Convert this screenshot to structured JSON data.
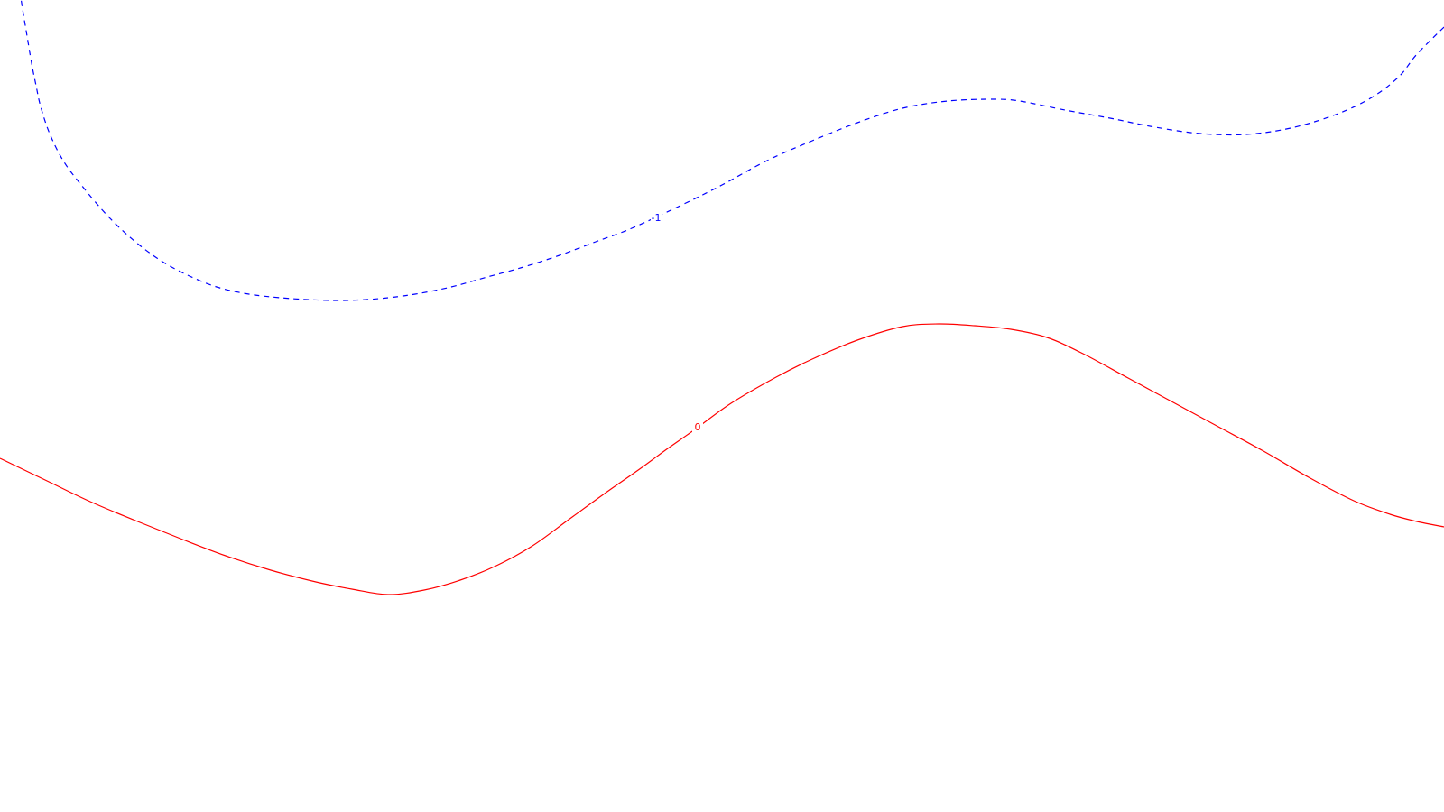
{
  "chart_data": {
    "type": "line",
    "series": [
      {
        "label": "-1",
        "color": "#0000ff",
        "dash": true,
        "points": [
          [
            22,
            -10
          ],
          [
            25,
            10
          ],
          [
            30,
            40
          ],
          [
            35,
            70
          ],
          [
            40,
            95
          ],
          [
            45,
            118
          ],
          [
            55,
            148
          ],
          [
            70,
            178
          ],
          [
            90,
            205
          ],
          [
            120,
            240
          ],
          [
            150,
            268
          ],
          [
            180,
            290
          ],
          [
            210,
            306
          ],
          [
            240,
            318
          ],
          [
            270,
            325
          ],
          [
            300,
            329
          ],
          [
            340,
            332
          ],
          [
            380,
            333
          ],
          [
            420,
            331
          ],
          [
            460,
            326
          ],
          [
            500,
            318
          ],
          [
            540,
            307
          ],
          [
            580,
            296
          ],
          [
            620,
            283
          ],
          [
            660,
            268
          ],
          [
            700,
            253
          ],
          [
            760,
            225
          ],
          [
            800,
            205
          ],
          [
            850,
            178
          ],
          [
            900,
            156
          ],
          [
            950,
            136
          ],
          [
            1000,
            120
          ],
          [
            1050,
            112
          ],
          [
            1100,
            110
          ],
          [
            1130,
            112
          ],
          [
            1180,
            122
          ],
          [
            1230,
            131
          ],
          [
            1280,
            141
          ],
          [
            1330,
            148
          ],
          [
            1380,
            149
          ],
          [
            1430,
            142
          ],
          [
            1480,
            127
          ],
          [
            1520,
            108
          ],
          [
            1550,
            85
          ],
          [
            1570,
            60
          ],
          [
            1600,
            30
          ]
        ],
        "label_at": [
          727,
          243
        ]
      },
      {
        "label": "0",
        "color": "#ff0000",
        "dash": false,
        "points": [
          [
            0,
            508
          ],
          [
            50,
            532
          ],
          [
            100,
            556
          ],
          [
            150,
            577
          ],
          [
            200,
            597
          ],
          [
            250,
            616
          ],
          [
            300,
            632
          ],
          [
            350,
            645
          ],
          [
            390,
            653
          ],
          [
            430,
            659
          ],
          [
            470,
            654
          ],
          [
            510,
            643
          ],
          [
            550,
            627
          ],
          [
            590,
            605
          ],
          [
            630,
            576
          ],
          [
            670,
            547
          ],
          [
            710,
            519
          ],
          [
            740,
            497
          ],
          [
            770,
            476
          ],
          [
            810,
            447
          ],
          [
            860,
            418
          ],
          [
            900,
            398
          ],
          [
            950,
            377
          ],
          [
            1000,
            362
          ],
          [
            1040,
            359
          ],
          [
            1080,
            361
          ],
          [
            1120,
            365
          ],
          [
            1160,
            374
          ],
          [
            1200,
            392
          ],
          [
            1250,
            419
          ],
          [
            1300,
            446
          ],
          [
            1350,
            473
          ],
          [
            1400,
            500
          ],
          [
            1450,
            529
          ],
          [
            1500,
            555
          ],
          [
            1540,
            570
          ],
          [
            1570,
            578
          ],
          [
            1600,
            584
          ]
        ],
        "label_at": [
          773,
          475
        ]
      }
    ]
  }
}
